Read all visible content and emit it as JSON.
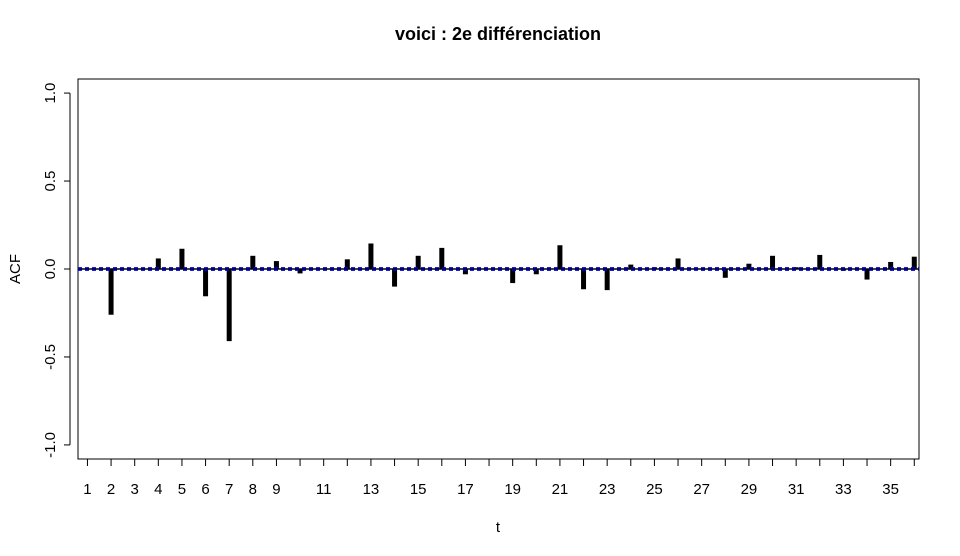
{
  "chart_data": {
    "type": "bar",
    "title": "voici : 2e différenciation",
    "xlabel": "t",
    "ylabel": "ACF",
    "xlim": [
      0.6,
      36.2
    ],
    "ylim": [
      -1.08,
      1.08
    ],
    "yticks": [
      -1.0,
      -0.5,
      0.0,
      0.5,
      1.0
    ],
    "ytick_labels": [
      "-1.0",
      "-0.5",
      "0.0",
      "0.5",
      "1.0"
    ],
    "xticks": [
      1,
      2,
      3,
      4,
      5,
      6,
      7,
      8,
      9,
      10,
      11,
      12,
      13,
      14,
      15,
      16,
      17,
      18,
      19,
      20,
      21,
      22,
      23,
      24,
      25,
      26,
      27,
      28,
      29,
      30,
      31,
      32,
      33,
      34,
      35,
      36
    ],
    "xtick_labels": [
      "1",
      "2",
      "3",
      "4",
      "5",
      "6",
      "7",
      "8",
      "9",
      "",
      "11",
      "",
      "13",
      "",
      "15",
      "",
      "17",
      "",
      "19",
      "",
      "21",
      "",
      "23",
      "",
      "25",
      "",
      "27",
      "",
      "29",
      "",
      "31",
      "",
      "33",
      "",
      "35",
      ""
    ],
    "lags": [
      1,
      2,
      3,
      4,
      5,
      6,
      7,
      8,
      9,
      10,
      11,
      12,
      13,
      14,
      15,
      16,
      17,
      18,
      19,
      20,
      21,
      22,
      23,
      24,
      25,
      26,
      27,
      28,
      29,
      30,
      31,
      32,
      33,
      34,
      35,
      36
    ],
    "values": [
      0.0,
      -0.26,
      0.0,
      0.06,
      0.115,
      -0.155,
      -0.41,
      0.075,
      0.045,
      -0.025,
      0.0,
      0.055,
      0.145,
      -0.1,
      0.075,
      0.12,
      -0.03,
      0.0,
      -0.08,
      -0.03,
      0.135,
      -0.115,
      -0.12,
      0.025,
      0.01,
      0.06,
      0.0,
      -0.05,
      0.03,
      0.075,
      0.01,
      0.08,
      -0.01,
      -0.06,
      0.04,
      0.07
    ],
    "confidence_bound": 0.0065,
    "grid": false,
    "colors": {
      "bars": "#000000",
      "confidence": "#0000cd",
      "zero_line": "#000000"
    }
  }
}
